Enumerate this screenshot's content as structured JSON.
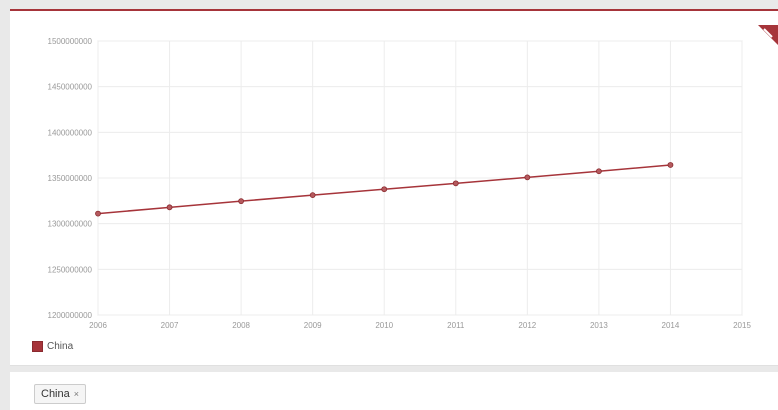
{
  "chart_data": {
    "type": "line",
    "title": "",
    "xlabel": "",
    "ylabel": "",
    "x": [
      2006,
      2007,
      2008,
      2009,
      2010,
      2011,
      2012,
      2013,
      2014
    ],
    "x_ticks": [
      "2006",
      "2007",
      "2008",
      "2009",
      "2010",
      "2011",
      "2012",
      "2013",
      "2014",
      "2015"
    ],
    "xlim": [
      2006,
      2015
    ],
    "y_ticks": [
      "1200000000",
      "1250000000",
      "1300000000",
      "1350000000",
      "1400000000",
      "1450000000",
      "1500000000"
    ],
    "ylim": [
      1200000000,
      1500000000
    ],
    "series": [
      {
        "name": "China",
        "color": "#a6343a",
        "values": [
          1311020000,
          1317885000,
          1324655000,
          1331260000,
          1337705000,
          1344130000,
          1350695000,
          1357380000,
          1364270000
        ]
      }
    ],
    "grid": true,
    "legend": "bottom-left"
  },
  "filter": {
    "chip_label": "China",
    "chip_remove": "×"
  }
}
